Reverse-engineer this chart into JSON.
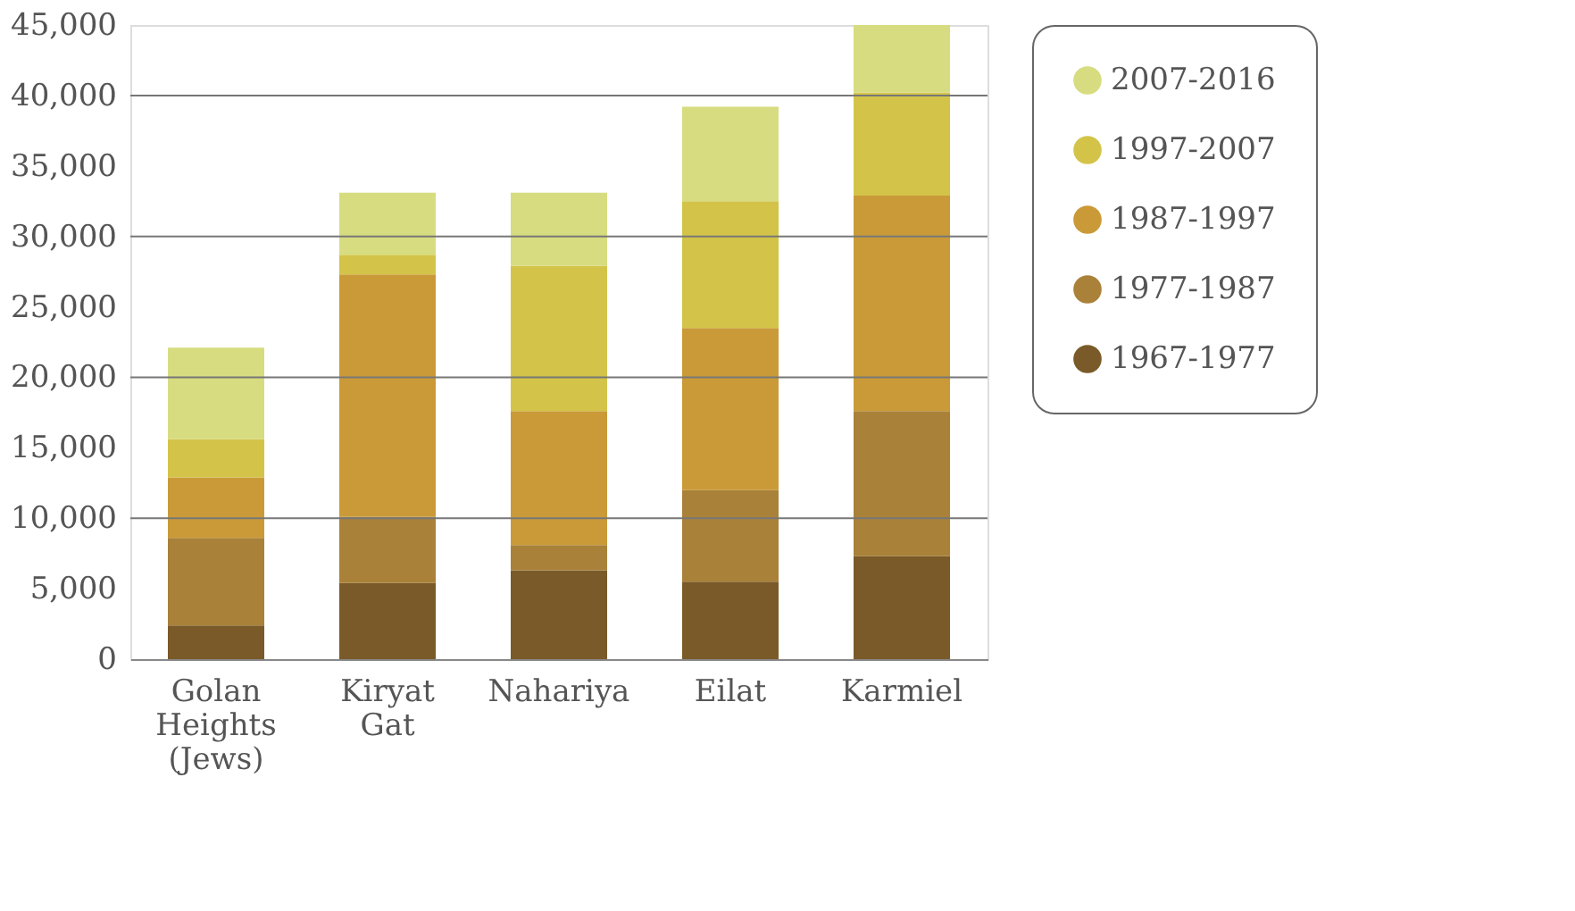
{
  "chart_data": {
    "type": "bar",
    "stacked": true,
    "categories": [
      "Golan Heights (Jews)",
      "Kiryat Gat",
      "Nahariya",
      "Eilat",
      "Karmiel"
    ],
    "series": [
      {
        "name": "1967-1977",
        "color": "#7a5a28",
        "values": [
          2400,
          5400,
          6300,
          5500,
          7300
        ]
      },
      {
        "name": "1977-1987",
        "color": "#a98139",
        "values": [
          6200,
          4700,
          1800,
          6500,
          10300
        ]
      },
      {
        "name": "1987-1997",
        "color": "#ca9a38",
        "values": [
          4300,
          17200,
          9500,
          11500,
          15300
        ]
      },
      {
        "name": "1997-2007",
        "color": "#d3c449",
        "values": [
          2700,
          1400,
          10300,
          9000,
          7300
        ]
      },
      {
        "name": "2007-2016",
        "color": "#d7dc80",
        "values": [
          6500,
          4400,
          5200,
          6700,
          4800
        ]
      }
    ],
    "ylim": [
      0,
      45000
    ],
    "yticks": [
      0,
      {
        "value": 5000,
        "label": "5,000"
      },
      {
        "value": 10000,
        "label": "10,000"
      },
      {
        "value": 15000,
        "label": "15,000"
      },
      {
        "value": 20000,
        "label": "20,000"
      },
      {
        "value": 25000,
        "label": "25,000"
      },
      {
        "value": 30000,
        "label": "30,000"
      },
      {
        "value": 35000,
        "label": "35,000"
      },
      {
        "value": 40000,
        "label": "40,000"
      },
      {
        "value": 45000,
        "label": "45,000"
      }
    ],
    "ref_lines": [
      {
        "axis": "y",
        "value": 10000,
        "label": null
      },
      {
        "axis": "y",
        "value": 20000,
        "label": null
      },
      {
        "axis": "y",
        "value": 30000,
        "label": null
      },
      {
        "axis": "y",
        "value": 40000,
        "label": null
      }
    ],
    "legend": "right"
  }
}
